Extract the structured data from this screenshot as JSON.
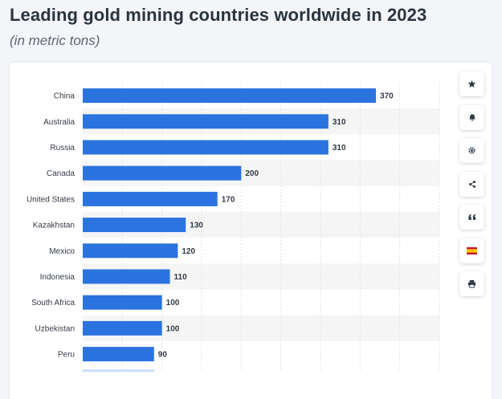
{
  "header": {
    "title": "Leading gold mining countries worldwide in 2023",
    "subtitle": "(in metric tons)"
  },
  "toolbar": {
    "buttons": [
      {
        "name": "star-icon"
      },
      {
        "name": "bell-icon"
      },
      {
        "name": "gear-icon"
      },
      {
        "name": "share-icon"
      },
      {
        "name": "quote-icon"
      },
      {
        "name": "spain-flag-icon"
      },
      {
        "name": "print-icon"
      }
    ]
  },
  "colors": {
    "bar": "#2b73de",
    "stripe": "#f5f5f5",
    "grid": "#e3e3e3"
  },
  "chart_data": {
    "type": "bar",
    "orientation": "horizontal",
    "title": "Leading gold mining countries worldwide in 2023",
    "subtitle": "(in metric tons)",
    "xlabel": "",
    "ylabel": "",
    "xlim": [
      0,
      450
    ],
    "grid": true,
    "categories": [
      "China",
      "Australia",
      "Russia",
      "Canada",
      "United States",
      "Kazakhstan",
      "Mexico",
      "Indonesia",
      "South Africa",
      "Uzbekistan",
      "Peru"
    ],
    "values": [
      370,
      310,
      310,
      200,
      170,
      130,
      120,
      110,
      100,
      100,
      90
    ],
    "value_labels": [
      "370",
      "310",
      "310",
      "200",
      "170",
      "130",
      "120",
      "110",
      "100",
      "100",
      "90"
    ]
  }
}
